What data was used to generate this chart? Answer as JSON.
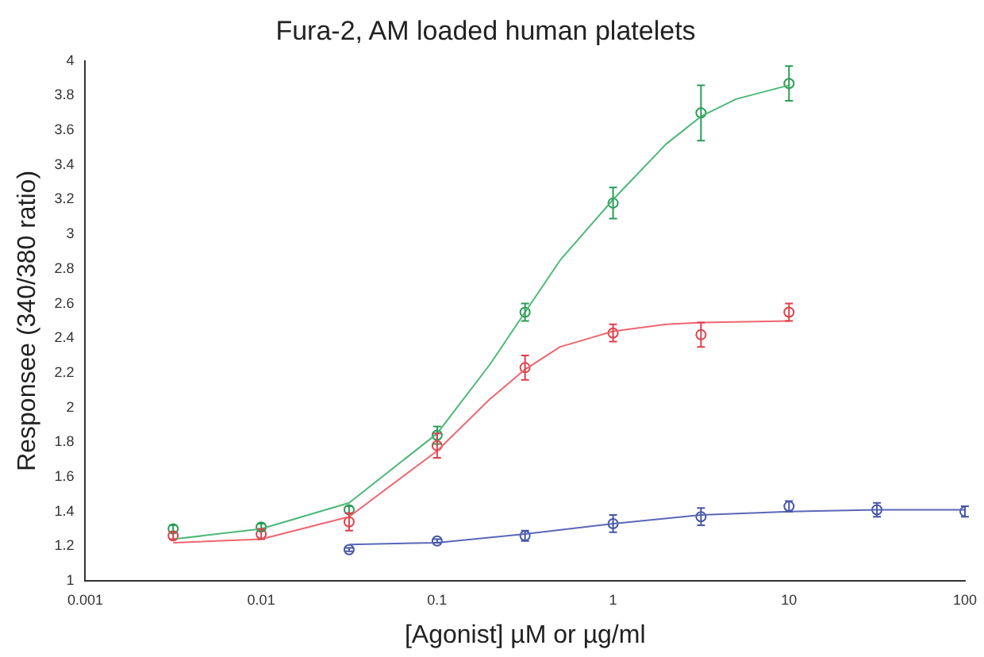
{
  "chart_data": {
    "type": "scatter",
    "title": "Fura-2, AM loaded human platelets",
    "xlabel": "[Agonist] µM or µg/ml",
    "ylabel": "Responsee (340/380 ratio)",
    "log": "x",
    "grid": false,
    "legend": false,
    "marker": "circle",
    "xlim": [
      0.001,
      100
    ],
    "xticks": [
      0.001,
      0.01,
      0.1,
      1,
      10,
      100
    ],
    "ylim": [
      1,
      4
    ],
    "yticks": [
      1,
      1.2,
      1.4,
      1.6,
      1.8,
      2,
      2.2,
      2.4,
      2.6,
      2.8,
      3,
      3.2,
      3.4,
      3.6,
      3.8,
      4
    ],
    "series": [
      {
        "type": "line",
        "marker": "none",
        "color": "#4cb878",
        "x": [
          0.00316,
          0.01,
          0.0316,
          0.1,
          0.2,
          0.316,
          0.5,
          1,
          2,
          3.16,
          5,
          10
        ],
        "values": [
          1.24,
          1.3,
          1.45,
          1.85,
          2.25,
          2.55,
          2.85,
          3.2,
          3.52,
          3.68,
          3.78,
          3.86
        ]
      },
      {
        "type": "line",
        "marker": "none",
        "color": "#ee6670",
        "x": [
          0.00316,
          0.01,
          0.0316,
          0.1,
          0.2,
          0.316,
          0.5,
          1,
          2,
          3.16,
          10
        ],
        "values": [
          1.22,
          1.24,
          1.37,
          1.75,
          2.05,
          2.22,
          2.35,
          2.44,
          2.48,
          2.49,
          2.5
        ]
      },
      {
        "type": "line",
        "marker": "none",
        "color": "#5a68b8",
        "x": [
          0.0316,
          0.1,
          0.316,
          1,
          3.16,
          10,
          31.6,
          100
        ],
        "values": [
          1.21,
          1.22,
          1.27,
          1.33,
          1.38,
          1.4,
          1.41,
          1.41
        ]
      },
      {
        "color": "#2a9d58",
        "x": [
          0.00316,
          0.01,
          0.0316,
          0.1,
          0.316,
          1,
          3.16,
          10
        ],
        "values": [
          1.3,
          1.31,
          1.41,
          1.84,
          2.55,
          3.18,
          3.7,
          3.87
        ],
        "errors": [
          0.02,
          0.02,
          0.02,
          0.05,
          0.05,
          0.09,
          0.16,
          0.1
        ]
      },
      {
        "color": "#e0404c",
        "x": [
          0.00316,
          0.01,
          0.0316,
          0.1,
          0.316,
          1,
          3.16,
          10
        ],
        "values": [
          1.26,
          1.27,
          1.34,
          1.78,
          2.23,
          2.43,
          2.42,
          2.55
        ],
        "errors": [
          0.02,
          0.03,
          0.05,
          0.07,
          0.07,
          0.05,
          0.07,
          0.05
        ]
      },
      {
        "color": "#4656a8",
        "x": [
          0.0316,
          0.1,
          0.316,
          1,
          3.16,
          10,
          31.6,
          100
        ],
        "values": [
          1.18,
          1.23,
          1.26,
          1.33,
          1.37,
          1.43,
          1.41,
          1.4
        ],
        "errors": [
          0.01,
          0.01,
          0.03,
          0.05,
          0.05,
          0.03,
          0.04,
          0.03
        ]
      }
    ]
  }
}
